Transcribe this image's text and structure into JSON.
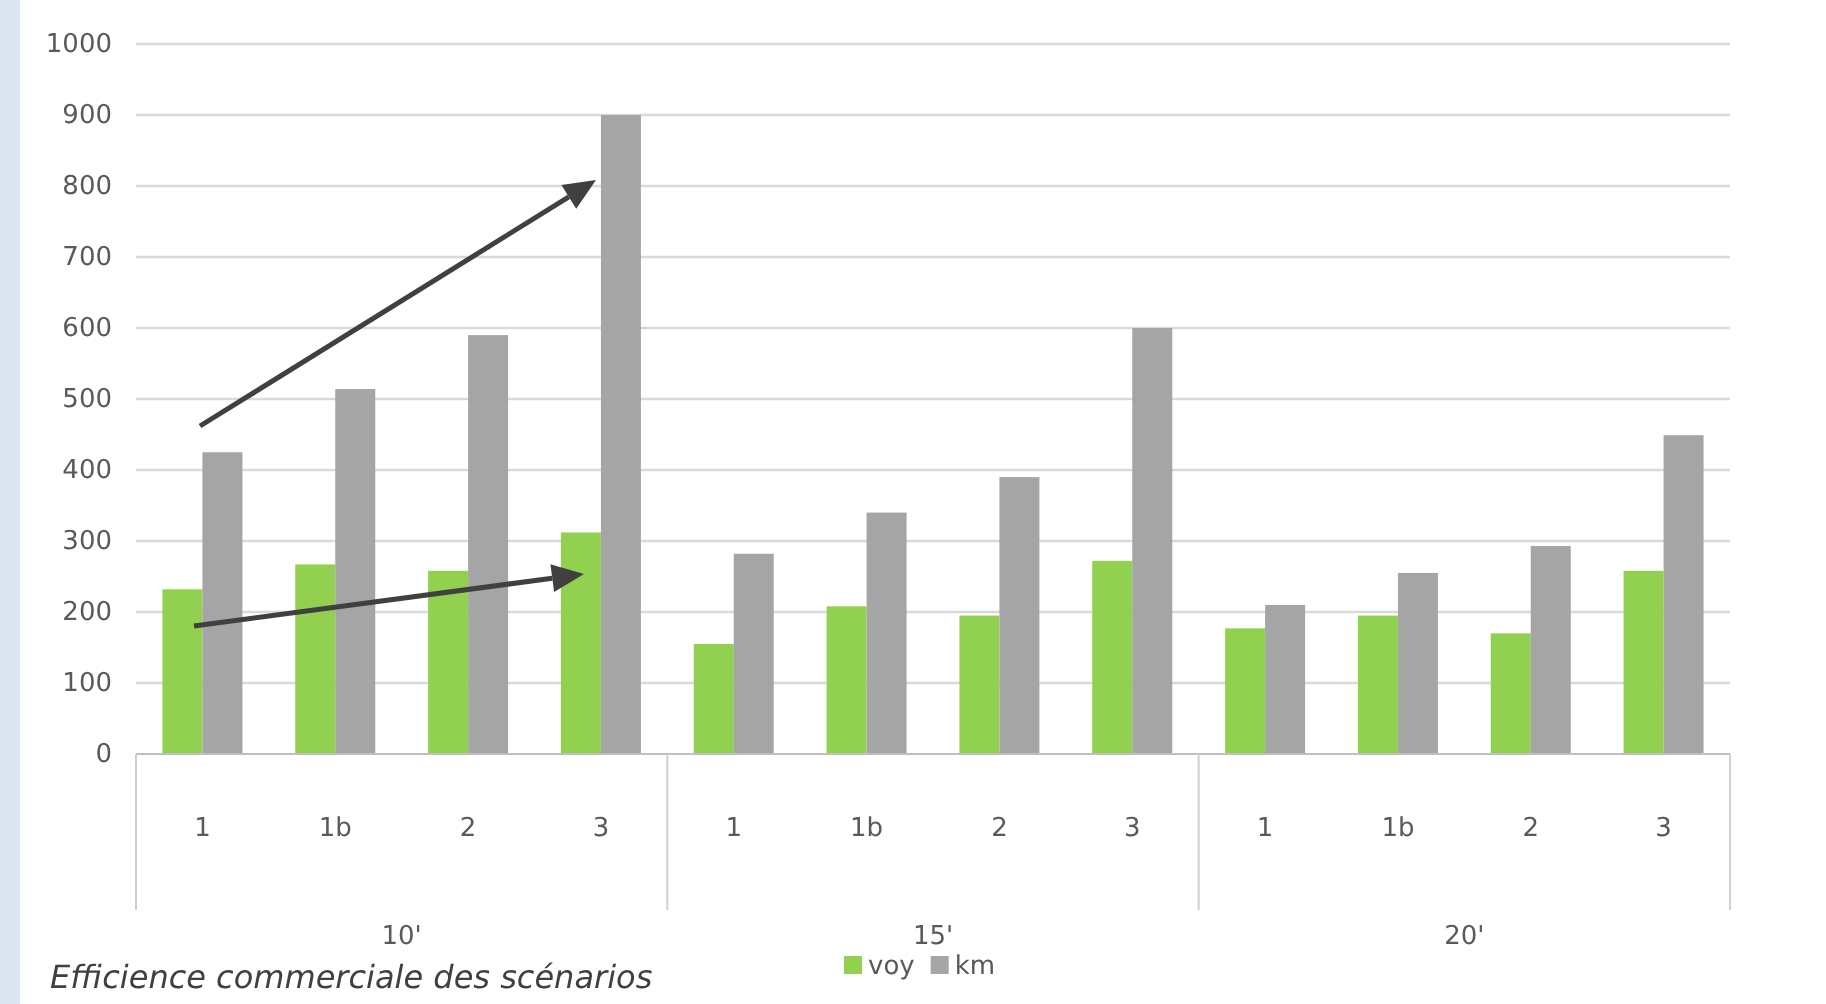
{
  "chart_data": {
    "type": "bar",
    "title": "Efficience commerciale des scénarios",
    "categories": [
      "1",
      "1b",
      "2",
      "3",
      "1",
      "1b",
      "2",
      "3",
      "1",
      "1b",
      "2",
      "3"
    ],
    "annotations": [
      "10'",
      "15'",
      "20'"
    ],
    "series": [
      {
        "name": "voy",
        "color": "#92d050",
        "values": [
          232,
          267,
          258,
          312,
          155,
          208,
          195,
          272,
          177,
          195,
          170,
          258
        ]
      },
      {
        "name": "km",
        "color": "#a5a5a5",
        "values": [
          425,
          514,
          590,
          900,
          282,
          340,
          390,
          600,
          210,
          255,
          293,
          449
        ]
      }
    ],
    "ylim": [
      0,
      1000
    ],
    "yticks": [
      0,
      100,
      200,
      300,
      400,
      500,
      600,
      700,
      800,
      900,
      1000
    ],
    "grid": "y",
    "legend": "bottom"
  }
}
